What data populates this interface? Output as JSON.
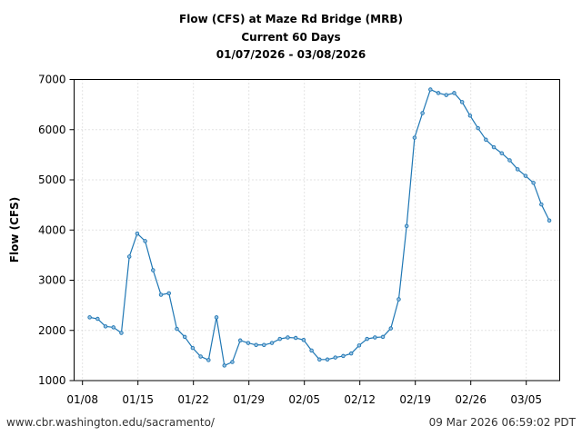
{
  "title": {
    "line1": "Flow (CFS) at Maze Rd Bridge (MRB)",
    "line2": "Current 60 Days",
    "line3": "01/07/2026 - 03/08/2026"
  },
  "footer": {
    "source": "www.cbr.washington.edu/sacramento/",
    "timestamp": "09 Mar 2026 06:59:02 PDT"
  },
  "colors": {
    "line": "#1f77b4",
    "grid": "#c8c8c8",
    "axis": "#000000"
  },
  "chart_data": {
    "type": "line",
    "title": "Flow (CFS) at Maze Rd Bridge (MRB) — Current 60 Days — 01/07/2026 - 03/08/2026",
    "xlabel": "",
    "ylabel": "Flow (CFS)",
    "ylim": [
      1000,
      7000
    ],
    "yticks": [
      1000,
      2000,
      3000,
      4000,
      5000,
      6000,
      7000
    ],
    "xticks": [
      "01/08",
      "01/15",
      "01/22",
      "01/29",
      "02/05",
      "02/12",
      "02/19",
      "02/26",
      "03/05"
    ],
    "grid": true,
    "legend": null,
    "x": [
      "01/09",
      "01/10",
      "01/11",
      "01/12",
      "01/13",
      "01/14",
      "01/15",
      "01/16",
      "01/17",
      "01/18",
      "01/19",
      "01/20",
      "01/21",
      "01/22",
      "01/23",
      "01/24",
      "01/25",
      "01/26",
      "01/27",
      "01/28",
      "01/29",
      "01/30",
      "01/31",
      "02/01",
      "02/02",
      "02/03",
      "02/04",
      "02/05",
      "02/06",
      "02/07",
      "02/08",
      "02/09",
      "02/10",
      "02/11",
      "02/12",
      "02/13",
      "02/14",
      "02/15",
      "02/16",
      "02/17",
      "02/18",
      "02/19",
      "02/20",
      "02/21",
      "02/22",
      "02/23",
      "02/24",
      "02/25",
      "02/26",
      "02/27",
      "02/28",
      "03/01",
      "03/02",
      "03/03",
      "03/04",
      "03/05",
      "03/06",
      "03/07",
      "03/08"
    ],
    "series": [
      {
        "name": "Flow (CFS)",
        "values": [
          2260,
          2230,
          2080,
          2060,
          1950,
          3470,
          3930,
          3780,
          3200,
          2710,
          2740,
          2030,
          1870,
          1650,
          1480,
          1410,
          2260,
          1300,
          1370,
          1800,
          1750,
          1710,
          1710,
          1750,
          1830,
          1860,
          1850,
          1810,
          1600,
          1420,
          1420,
          1460,
          1490,
          1540,
          1700,
          1830,
          1860,
          1870,
          2040,
          2620,
          4080,
          5840,
          6330,
          6800,
          6730,
          6690,
          6730,
          6550,
          6280,
          6030,
          5800,
          5650,
          5530,
          5390,
          5210,
          5080,
          4940,
          4510,
          4190
        ]
      }
    ]
  }
}
